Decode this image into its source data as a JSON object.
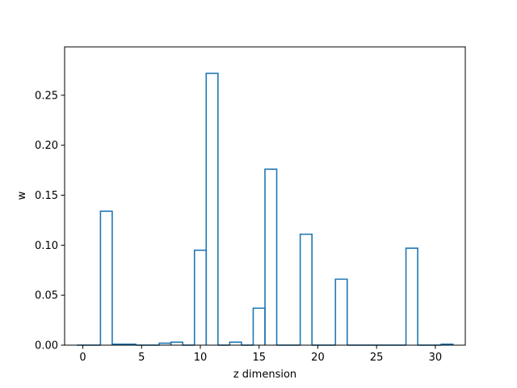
{
  "chart_data": {
    "type": "bar",
    "style": "step-outline",
    "title": "",
    "xlabel": "z dimension",
    "ylabel": "w",
    "xlim": [
      -1.55,
      32.55
    ],
    "ylim": [
      0,
      0.2984
    ],
    "xticks": [
      0,
      5,
      10,
      15,
      20,
      25,
      30
    ],
    "yticks": [
      0.0,
      0.05,
      0.1,
      0.15,
      0.2,
      0.25
    ],
    "ytick_labels": [
      "0.00",
      "0.05",
      "0.10",
      "0.15",
      "0.20",
      "0.25"
    ],
    "grid": false,
    "legend": "none",
    "series_color": "#1f77b4",
    "x": [
      0,
      1,
      2,
      3,
      4,
      5,
      6,
      7,
      8,
      9,
      10,
      11,
      12,
      13,
      14,
      15,
      16,
      17,
      18,
      19,
      20,
      21,
      22,
      23,
      24,
      25,
      26,
      27,
      28,
      29,
      30,
      31
    ],
    "values": [
      0.0,
      0.0,
      0.134,
      0.001,
      0.001,
      0.0,
      0.0,
      0.002,
      0.003,
      0.0,
      0.095,
      0.272,
      0.0,
      0.003,
      0.0,
      0.037,
      0.176,
      0.0,
      0.0,
      0.111,
      0.0,
      0.0,
      0.066,
      0.0,
      0.0,
      0.0,
      0.0,
      0.0,
      0.097,
      0.0,
      0.0,
      0.001
    ]
  }
}
